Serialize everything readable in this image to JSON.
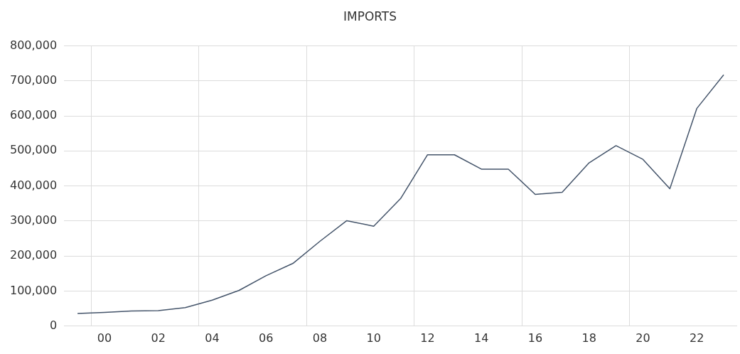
{
  "chart_data": {
    "type": "line",
    "title": "IMPORTS",
    "categories": [
      null,
      "00",
      null,
      "02",
      null,
      "04",
      null,
      "06",
      null,
      "08",
      null,
      "10",
      null,
      "12",
      null,
      "14",
      null,
      "16",
      null,
      "18",
      null,
      "20",
      null,
      "22",
      null
    ],
    "series": [
      {
        "color": "#44546a",
        "values": [
          36000,
          39000,
          43000,
          44000,
          53000,
          74000,
          102000,
          144000,
          179000,
          242000,
          301000,
          285000,
          364000,
          489000,
          489000,
          448000,
          448000,
          376000,
          382000,
          466000,
          515000,
          476000,
          392000,
          621000,
          717000
        ]
      }
    ],
    "ylim": [
      0,
      800000
    ],
    "yticks": [
      {
        "value": 0,
        "label": "0"
      },
      {
        "value": 100000,
        "label": "100,000"
      },
      {
        "value": 200000,
        "label": "200,000"
      },
      {
        "value": 300000,
        "label": "300,000"
      },
      {
        "value": 400000,
        "label": "400,000"
      },
      {
        "value": 500000,
        "label": "500,000"
      },
      {
        "value": 600000,
        "label": "600,000"
      },
      {
        "value": 700000,
        "label": "700,000"
      },
      {
        "value": 800000,
        "label": "800,000"
      }
    ],
    "grid": true,
    "legend": false,
    "marker": "none",
    "line_style": "solid"
  }
}
